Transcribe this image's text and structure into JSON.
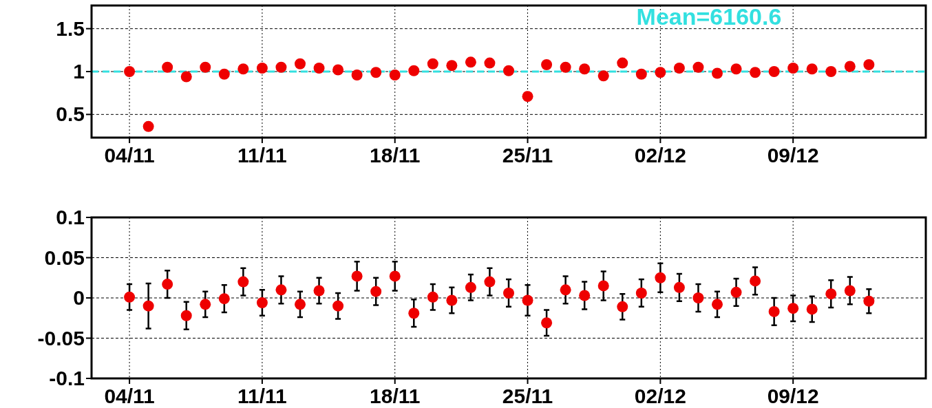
{
  "chart_data": [
    {
      "type": "scatter",
      "x": [
        "--11-04",
        "--11-05",
        "--11-06",
        "--11-07",
        "--11-08",
        "--11-09",
        "--11-10",
        "--11-11",
        "--11-12",
        "--11-13",
        "--11-14",
        "--11-15",
        "--11-16",
        "--11-17",
        "--11-18",
        "--11-19",
        "--11-20",
        "--11-21",
        "--11-22",
        "--11-23",
        "--11-24",
        "--11-25",
        "--11-26",
        "--11-27",
        "--11-28",
        "--11-29",
        "--11-30",
        "--12-01",
        "--12-02",
        "--12-03",
        "--12-04",
        "--12-05",
        "--12-06",
        "--12-07",
        "--12-08",
        "--12-09",
        "--12-10",
        "--12-11",
        "--12-12",
        "--12-13"
      ],
      "series": [
        {
          "color": "#ee0000",
          "values": [
            1.0,
            0.36,
            1.05,
            0.94,
            1.05,
            0.97,
            1.03,
            1.04,
            1.05,
            1.09,
            1.04,
            1.02,
            0.96,
            0.99,
            0.96,
            1.01,
            1.09,
            1.07,
            1.11,
            1.1,
            1.01,
            0.71,
            1.08,
            1.05,
            1.03,
            0.95,
            1.1,
            0.97,
            0.99,
            1.04,
            1.05,
            0.98,
            1.03,
            0.99,
            1.0,
            1.04,
            1.03,
            1.0,
            1.06,
            1.08
          ]
        }
      ],
      "xlim": [
        "--11-02",
        "--12-16"
      ],
      "xticks": [
        {
          "value": "--11-04",
          "label": "04/11"
        },
        {
          "value": "--11-11",
          "label": "11/11"
        },
        {
          "value": "--11-18",
          "label": "18/11"
        },
        {
          "value": "--11-25",
          "label": "25/11"
        },
        {
          "value": "--12-02",
          "label": "02/12"
        },
        {
          "value": "--12-09",
          "label": "09/12"
        }
      ],
      "ylim": [
        0.23,
        1.77
      ],
      "yticks": [
        0.5,
        1,
        1.5
      ],
      "grid": true,
      "marker": "circle",
      "ref_lines": [
        {
          "axis": "y",
          "value": 1,
          "color": "#33e0e0",
          "line_style": "dashed"
        }
      ],
      "annotations": [
        "Mean=6160.6"
      ]
    },
    {
      "type": "scatter",
      "x": [
        "--11-04",
        "--11-05",
        "--11-06",
        "--11-07",
        "--11-08",
        "--11-09",
        "--11-10",
        "--11-11",
        "--11-12",
        "--11-13",
        "--11-14",
        "--11-15",
        "--11-16",
        "--11-17",
        "--11-18",
        "--11-19",
        "--11-20",
        "--11-21",
        "--11-22",
        "--11-23",
        "--11-24",
        "--11-25",
        "--11-26",
        "--11-27",
        "--11-28",
        "--11-29",
        "--11-30",
        "--12-01",
        "--12-02",
        "--12-03",
        "--12-04",
        "--12-05",
        "--12-06",
        "--12-07",
        "--12-08",
        "--12-09",
        "--12-10",
        "--12-11",
        "--12-12",
        "--12-13"
      ],
      "series": [
        {
          "color": "#ee0000",
          "values": [
            0.001,
            -0.01,
            0.017,
            -0.022,
            -0.008,
            -0.001,
            0.02,
            -0.006,
            0.01,
            -0.008,
            0.009,
            -0.01,
            0.027,
            0.008,
            0.027,
            -0.019,
            0.001,
            -0.003,
            0.013,
            0.02,
            0.006,
            -0.003,
            -0.031,
            0.01,
            0.003,
            0.015,
            -0.011,
            0.006,
            0.025,
            0.013,
            0.0,
            -0.008,
            0.007,
            0.021,
            -0.017,
            -0.013,
            -0.014,
            0.005,
            0.009,
            -0.004
          ],
          "errors": [
            0.016,
            0.028,
            0.017,
            0.017,
            0.016,
            0.017,
            0.017,
            0.016,
            0.017,
            0.016,
            0.016,
            0.016,
            0.018,
            0.017,
            0.018,
            0.017,
            0.016,
            0.016,
            0.016,
            0.017,
            0.017,
            0.019,
            0.016,
            0.017,
            0.017,
            0.018,
            0.016,
            0.017,
            0.018,
            0.017,
            0.017,
            0.016,
            0.017,
            0.017,
            0.017,
            0.016,
            0.016,
            0.017,
            0.017,
            0.015
          ]
        }
      ],
      "xlim": [
        "--11-02",
        "--12-16"
      ],
      "xticks": [
        {
          "value": "--11-04",
          "label": "04/11"
        },
        {
          "value": "--11-11",
          "label": "11/11"
        },
        {
          "value": "--11-18",
          "label": "18/11"
        },
        {
          "value": "--11-25",
          "label": "25/11"
        },
        {
          "value": "--12-02",
          "label": "02/12"
        },
        {
          "value": "--12-09",
          "label": "09/12"
        }
      ],
      "ylim": [
        -0.1,
        0.1
      ],
      "yticks": [
        -0.1,
        -0.05,
        0,
        0.05,
        0.1
      ],
      "grid": true,
      "marker": "circle"
    }
  ]
}
